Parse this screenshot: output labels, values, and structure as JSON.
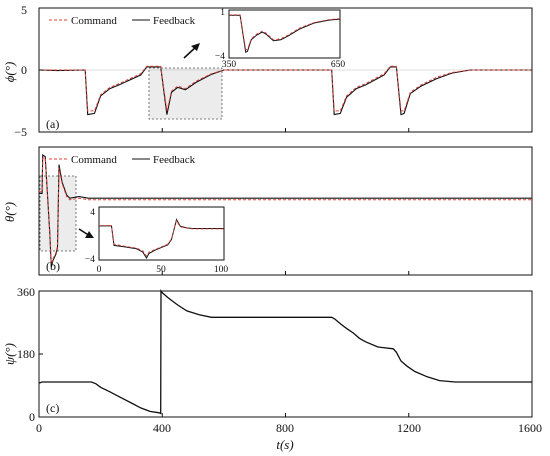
{
  "figure": {
    "xlabel": "t(s)"
  },
  "chart_data": [
    {
      "type": "line",
      "panel_label": "(a)",
      "ylabel": "ϕ(°)",
      "xlim": [
        0,
        1600
      ],
      "ylim": [
        -5,
        5
      ],
      "yticks": [
        "5",
        "0",
        "−5"
      ],
      "legend": {
        "placement": "top-left",
        "entries": [
          "Command",
          "Feedback"
        ]
      },
      "series": [
        {
          "name": "Command",
          "color": "#e0403a",
          "style": "dashed",
          "x": [
            0,
            60,
            150,
            158,
            180,
            200,
            230,
            260,
            330,
            350,
            395,
            415,
            430,
            450,
            475,
            510,
            560,
            600,
            650,
            700,
            950,
            958,
            978,
            998,
            1030,
            1060,
            1120,
            1140,
            1160,
            1175,
            1185,
            1205,
            1240,
            1290,
            1340,
            1400,
            1600
          ],
          "y": [
            0,
            0,
            0,
            -3.3,
            -3.3,
            -2.0,
            -1.4,
            -1.1,
            -0.3,
            0.3,
            0.3,
            -3.3,
            -1.7,
            -1.3,
            -1.5,
            -0.9,
            -0.3,
            0,
            0,
            0,
            0,
            -3.3,
            -3.3,
            -2.1,
            -1.4,
            -1.1,
            -0.3,
            0.3,
            0.3,
            -3.3,
            -3.3,
            -1.8,
            -1.2,
            -0.6,
            -0.2,
            0,
            0
          ]
        },
        {
          "name": "Feedback",
          "color": "#111111",
          "style": "solid",
          "x": [
            0,
            60,
            150,
            158,
            180,
            200,
            230,
            260,
            330,
            350,
            395,
            415,
            430,
            450,
            475,
            510,
            560,
            600,
            650,
            700,
            950,
            958,
            978,
            998,
            1030,
            1060,
            1120,
            1140,
            1160,
            1175,
            1185,
            1205,
            1240,
            1290,
            1340,
            1400,
            1600
          ],
          "y": [
            0,
            -0.05,
            0,
            -3.6,
            -3.5,
            -2.1,
            -1.5,
            -1.2,
            -0.4,
            0.25,
            0.25,
            -3.6,
            -1.8,
            -1.4,
            -1.6,
            -1.0,
            -0.35,
            0,
            0,
            0,
            0,
            -3.6,
            -3.5,
            -2.2,
            -1.5,
            -1.2,
            -0.4,
            0.25,
            0.25,
            -3.6,
            -3.5,
            -1.9,
            -1.3,
            -0.7,
            -0.25,
            0,
            0
          ]
        }
      ],
      "inset": {
        "xlim": [
          350,
          650
        ],
        "ylim": [
          -4,
          1
        ],
        "xticks": [
          "350",
          "650"
        ],
        "yticks": [
          "1",
          "−4"
        ],
        "series": [
          {
            "name": "Command",
            "x": [
              350,
              360,
              380,
              395,
              400,
              410,
              425,
              440,
              450,
              470,
              490,
              510,
              540,
              580,
              620,
              650
            ],
            "y": [
              0.5,
              0.5,
              0.5,
              -3.1,
              -3.1,
              -2.0,
              -1.5,
              -1.2,
              -1.4,
              -2.1,
              -2.0,
              -1.6,
              -0.9,
              -0.3,
              0.0,
              0.1
            ]
          },
          {
            "name": "Feedback",
            "x": [
              350,
              360,
              380,
              395,
              400,
              410,
              425,
              440,
              450,
              470,
              490,
              510,
              540,
              580,
              620,
              650
            ],
            "y": [
              0.45,
              0.45,
              0.45,
              -3.4,
              -3.3,
              -2.1,
              -1.6,
              -1.3,
              -1.5,
              -2.2,
              -2.1,
              -1.7,
              -1.0,
              -0.35,
              -0.05,
              0.05
            ]
          }
        ]
      }
    },
    {
      "type": "line",
      "panel_label": "(b)",
      "ylabel": "θ(°)",
      "xlim": [
        0,
        1600
      ],
      "ylim": [
        -4,
        4
      ],
      "yticks": [],
      "legend": {
        "placement": "top-left",
        "entries": [
          "Command",
          "Feedback"
        ]
      },
      "series": [
        {
          "name": "Command",
          "color": "#e0403a",
          "style": "dashed",
          "x": [
            0,
            10,
            12,
            20,
            35,
            40,
            45,
            55,
            60,
            65,
            75,
            90,
            100,
            130,
            160,
            300,
            600,
            900,
            1200,
            1600
          ],
          "y": [
            1.2,
            1.2,
            3.3,
            3.3,
            -1.3,
            -3.3,
            -3.0,
            -2.6,
            -2.2,
            2.7,
            1.7,
            0.9,
            0.7,
            0.8,
            0.7,
            0.7,
            0.7,
            0.7,
            0.7,
            0.7
          ]
        },
        {
          "name": "Feedback",
          "color": "#111111",
          "style": "solid",
          "x": [
            0,
            10,
            12,
            20,
            35,
            40,
            45,
            55,
            60,
            65,
            75,
            90,
            100,
            130,
            160,
            300,
            600,
            900,
            1200,
            1600
          ],
          "y": [
            1.1,
            1.1,
            3.5,
            3.4,
            -1.4,
            -3.5,
            -3.1,
            -2.7,
            -2.3,
            2.9,
            1.8,
            1.0,
            0.8,
            0.9,
            0.8,
            0.8,
            0.8,
            0.8,
            0.8,
            0.8
          ]
        }
      ],
      "inset": {
        "xlim": [
          0,
          100
        ],
        "ylim": [
          -4,
          4
        ],
        "xticks": [
          "0",
          "50",
          "100"
        ],
        "yticks": [
          "4",
          "−4"
        ],
        "series": [
          {
            "name": "Command",
            "x": [
              0,
              10,
              12,
              20,
              30,
              35,
              38,
              40,
              45,
              50,
              55,
              58,
              62,
              65,
              70,
              75,
              80,
              90,
              100
            ],
            "y": [
              1.2,
              1.2,
              -1.6,
              -1.9,
              -2.2,
              -2.6,
              -3.4,
              -2.8,
              -2.4,
              -2.0,
              -1.6,
              -0.8,
              1.9,
              1.0,
              0.8,
              0.7,
              0.7,
              0.7,
              0.7
            ]
          },
          {
            "name": "Feedback",
            "x": [
              0,
              10,
              12,
              20,
              30,
              35,
              38,
              40,
              45,
              50,
              55,
              58,
              62,
              65,
              70,
              75,
              80,
              90,
              100
            ],
            "y": [
              1.15,
              1.15,
              -1.8,
              -2.0,
              -2.3,
              -2.8,
              -3.7,
              -3.0,
              -2.5,
              -2.1,
              -1.7,
              -0.9,
              2.1,
              1.1,
              0.85,
              0.75,
              0.75,
              0.75,
              0.75
            ]
          }
        ]
      }
    },
    {
      "type": "line",
      "panel_label": "(c)",
      "ylabel": "ψ(°)",
      "xlim": [
        0,
        1600
      ],
      "ylim": [
        0,
        360
      ],
      "xticks": [
        "0",
        "400",
        "800",
        "1200",
        "1600"
      ],
      "yticks": [
        "360",
        "180",
        "0"
      ],
      "series": [
        {
          "name": "Feedback",
          "color": "#111111",
          "style": "solid",
          "x": [
            0,
            10,
            170,
            185,
            200,
            230,
            260,
            300,
            330,
            360,
            390,
            395,
            396,
            400,
            420,
            450,
            480,
            520,
            560,
            700,
            950,
            960,
            980,
            1000,
            1020,
            1040,
            1060,
            1100,
            1150,
            1160,
            1175,
            1195,
            1220,
            1260,
            1300,
            1350,
            1400,
            1600
          ],
          "y": [
            97,
            100,
            100,
            95,
            85,
            72,
            58,
            40,
            26,
            16,
            12,
            10,
            360,
            355,
            340,
            320,
            303,
            292,
            285,
            285,
            285,
            280,
            265,
            252,
            240,
            225,
            215,
            200,
            195,
            185,
            160,
            145,
            130,
            115,
            104,
            100,
            100,
            100
          ]
        }
      ]
    }
  ]
}
